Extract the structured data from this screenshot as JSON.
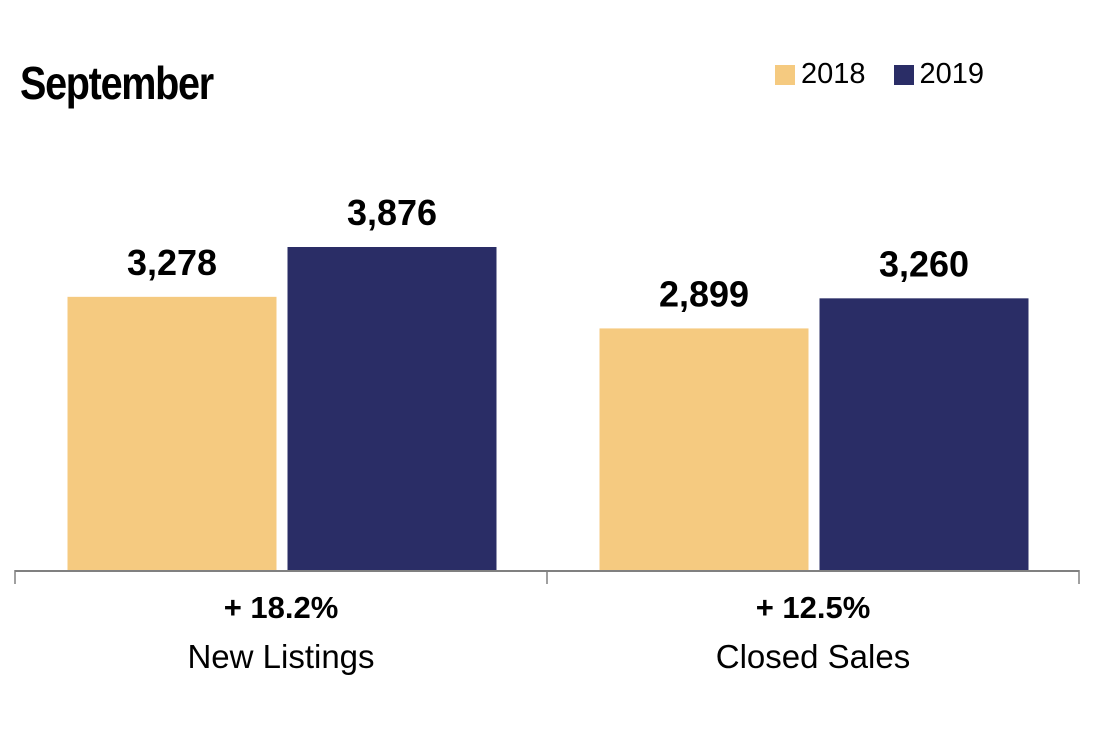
{
  "chart_data": {
    "type": "bar",
    "title": "September",
    "categories": [
      "New Listings",
      "Closed Sales"
    ],
    "change_labels": [
      "+ 18.2%",
      "+ 12.5%"
    ],
    "series": [
      {
        "name": "2018",
        "color": "#F5CA80",
        "values": [
          3278,
          2899
        ],
        "labels": [
          "3,278",
          "2,899"
        ]
      },
      {
        "name": "2019",
        "color": "#2A2D66",
        "values": [
          3876,
          3260
        ],
        "labels": [
          "3,876",
          "3,260"
        ]
      }
    ],
    "xlabel": "",
    "ylabel": "",
    "ylim": [
      0,
      4800
    ],
    "grid": false,
    "legend_position": "top-right"
  }
}
